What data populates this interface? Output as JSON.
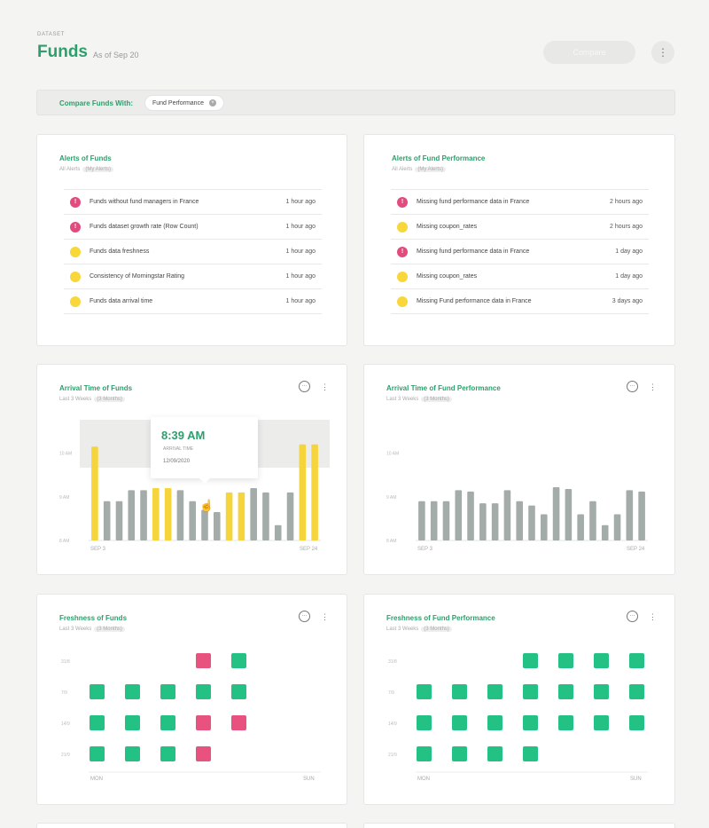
{
  "header": {
    "eyebrow": "DATASET",
    "title": "Funds",
    "as_of": "As of Sep 20",
    "compare_button": "Compare",
    "more_icon": "more-vertical-icon"
  },
  "compare_bar": {
    "label": "Compare Funds With:",
    "chip": "Fund Performance",
    "chip_remove_icon": "close-circle-icon"
  },
  "alerts_funds": {
    "title": "Alerts of Funds",
    "sub_all": "All Alerts",
    "sub_mine": "(My Alerts)",
    "items": [
      {
        "text": "Funds without fund managers in France",
        "time": "1 hour ago",
        "severity": "red"
      },
      {
        "text": "Funds dataset growth rate (Row Count)",
        "time": "1 hour ago",
        "severity": "red"
      },
      {
        "text": "Funds data freshness",
        "time": "1 hour ago",
        "severity": "yellow"
      },
      {
        "text": "Consistency of Morningstar Rating",
        "time": "1 hour ago",
        "severity": "yellow"
      },
      {
        "text": "Funds data arrival time",
        "time": "1 hour ago",
        "severity": "yellow"
      }
    ]
  },
  "alerts_perf": {
    "title": "Alerts of Fund Performance",
    "sub_all": "All Alerts",
    "sub_mine": "(My Alerts)",
    "items": [
      {
        "text": "Missing fund performance data in France",
        "time": "2 hours ago",
        "severity": "red"
      },
      {
        "text": "Missing coupon_rates",
        "time": "2 hours ago",
        "severity": "yellow"
      },
      {
        "text": "Missing fund performance data in France",
        "time": "1 day ago",
        "severity": "red"
      },
      {
        "text": "Missing coupon_rates",
        "time": "1 day ago",
        "severity": "yellow"
      },
      {
        "text": "Missing Fund performance data in France",
        "time": "3 days ago",
        "severity": "yellow"
      }
    ]
  },
  "arrival_funds": {
    "title": "Arrival Time of Funds",
    "sub": "Last 3 Weeks",
    "sub_pill": "(3 Months)",
    "tooltip_time": "8:39 AM",
    "tooltip_label": "ARRIVAL TIME",
    "tooltip_date": "12/09/2020"
  },
  "arrival_perf": {
    "title": "Arrival Time of Fund Performance",
    "sub": "Last 3 Weeks",
    "sub_pill": "(3 Months)"
  },
  "freshness_funds": {
    "title": "Freshness of Funds",
    "sub": "Last 3 Weeks",
    "sub_pill": "(3 Months)"
  },
  "freshness_perf": {
    "title": "Freshness of Fund Performance",
    "sub": "Last 3 Weeks",
    "sub_pill": "(3 Months)"
  },
  "chart_data": [
    {
      "type": "bar",
      "name": "arrival_funds",
      "yticks": [
        "10 AM",
        "9 AM",
        "8 AM"
      ],
      "xticks": [
        "SEP 3",
        "SEP 24"
      ],
      "ylim": [
        8,
        10.5
      ],
      "values": [
        10.15,
        8.9,
        8.9,
        9.15,
        9.15,
        9.2,
        9.2,
        9.15,
        8.9,
        8.7,
        8.65,
        9.1,
        9.1,
        9.2,
        9.1,
        8.35,
        9.1,
        10.2,
        10.2
      ],
      "highlight": [
        true,
        false,
        false,
        false,
        false,
        true,
        true,
        false,
        false,
        false,
        false,
        true,
        true,
        false,
        false,
        false,
        false,
        true,
        true
      ],
      "colors": {
        "normal": "#a3aca8",
        "highlight": "#f6d43b"
      }
    },
    {
      "type": "bar",
      "name": "arrival_perf",
      "yticks": [
        "10 AM",
        "9 AM",
        "8 AM"
      ],
      "xticks": [
        "SEP 3",
        "SEP 24"
      ],
      "ylim": [
        8,
        10.5
      ],
      "values": [
        8.9,
        8.9,
        8.9,
        9.15,
        9.12,
        8.85,
        8.85,
        9.15,
        8.9,
        8.8,
        8.6,
        9.22,
        9.18,
        8.6,
        8.9,
        8.35,
        8.6,
        9.15,
        9.12
      ],
      "colors": {
        "normal": "#a3aca8"
      }
    },
    {
      "type": "heatmap",
      "name": "freshness_funds",
      "rows": [
        "31/8",
        "7/9",
        "14/9",
        "21/9"
      ],
      "xlabels": [
        "MON",
        "SUN"
      ],
      "grid": [
        [
          null,
          null,
          null,
          "red",
          "green"
        ],
        [
          "green",
          "green",
          "green",
          "green",
          "green"
        ],
        [
          "green",
          "green",
          "green",
          "red",
          "red"
        ],
        [
          "green",
          "green",
          "green",
          "red",
          null
        ]
      ],
      "colors": {
        "green": "#24c184",
        "red": "#e8527e"
      }
    },
    {
      "type": "heatmap",
      "name": "freshness_perf",
      "rows": [
        "31/8",
        "7/9",
        "14/9",
        "21/9"
      ],
      "xlabels": [
        "MON",
        "SUN"
      ],
      "grid": [
        [
          null,
          null,
          null,
          "green",
          "green",
          "green",
          "green"
        ],
        [
          "green",
          "green",
          "green",
          "green",
          "green",
          "green",
          "green"
        ],
        [
          "green",
          "green",
          "green",
          "green",
          "green",
          "green",
          "green"
        ],
        [
          "green",
          "green",
          "green",
          "green",
          null,
          null,
          null
        ]
      ],
      "colors": {
        "green": "#24c184",
        "red": "#e8527e"
      }
    }
  ]
}
